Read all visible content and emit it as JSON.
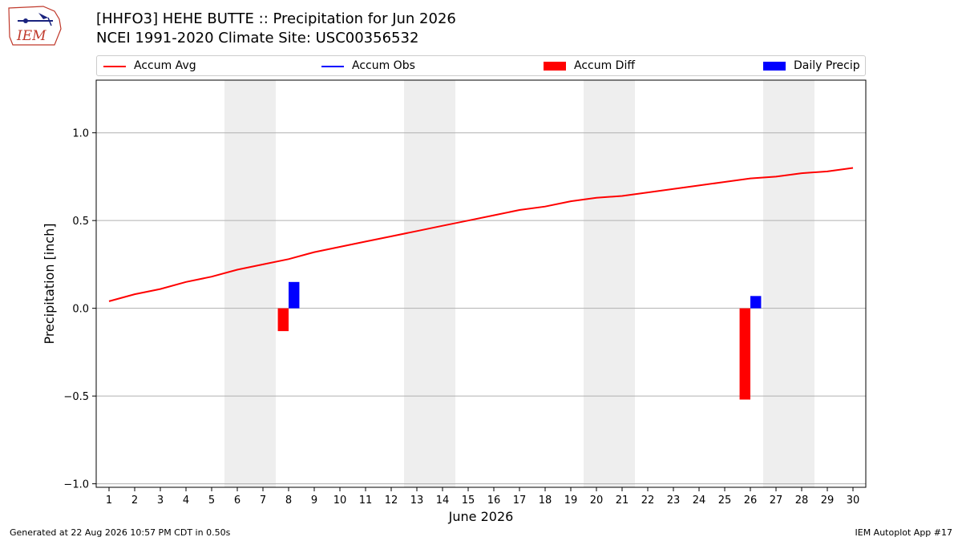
{
  "header": {
    "logo_text": "IEM",
    "title_line1": "[HHFO3] HEHE BUTTE :: Precipitation for Jun 2026",
    "title_line2": "NCEI 1991-2020 Climate Site: USC00356532"
  },
  "legend": {
    "items": [
      {
        "label": "Accum Avg",
        "kind": "line",
        "color": "#ff0000"
      },
      {
        "label": "Accum Obs",
        "kind": "line",
        "color": "#0000ff"
      },
      {
        "label": "Accum Diff",
        "kind": "box",
        "color": "#ff0000"
      },
      {
        "label": "Daily Precip",
        "kind": "box",
        "color": "#0000ff"
      }
    ],
    "placement": "top, above plot"
  },
  "footer": {
    "generated": "Generated at 22 Aug 2026 10:57 PM CDT in 0.50s",
    "app": "IEM Autoplot App #17"
  },
  "chart_data": {
    "type": "line",
    "xlabel": "June 2026",
    "ylabel": "Precipitation [inch]",
    "xlim": [
      0.5,
      30.5
    ],
    "ylim": [
      -1.02,
      1.3
    ],
    "x_ticks": [
      1,
      2,
      3,
      4,
      5,
      6,
      7,
      8,
      9,
      10,
      11,
      12,
      13,
      14,
      15,
      16,
      17,
      18,
      19,
      20,
      21,
      22,
      23,
      24,
      25,
      26,
      27,
      28,
      29,
      30
    ],
    "y_ticks": [
      -1.0,
      -0.5,
      0.0,
      0.5,
      1.0
    ],
    "y_tick_labels": [
      "−1.0",
      "−0.5",
      "0.0",
      "0.5",
      "1.0"
    ],
    "grid": "horizontal",
    "weekend_shading": [
      [
        6,
        7
      ],
      [
        13,
        14
      ],
      [
        20,
        21
      ],
      [
        27,
        28
      ]
    ],
    "shade_color": "#eeeeee",
    "series": [
      {
        "name": "Accum Avg",
        "kind": "line",
        "color": "#ff0000",
        "x": [
          1,
          2,
          3,
          4,
          5,
          6,
          7,
          8,
          9,
          10,
          11,
          12,
          13,
          14,
          15,
          16,
          17,
          18,
          19,
          20,
          21,
          22,
          23,
          24,
          25,
          26,
          27,
          28,
          29,
          30
        ],
        "values": [
          0.04,
          0.08,
          0.11,
          0.15,
          0.18,
          0.22,
          0.25,
          0.28,
          0.32,
          0.35,
          0.38,
          0.41,
          0.44,
          0.47,
          0.5,
          0.53,
          0.56,
          0.58,
          0.61,
          0.63,
          0.64,
          0.66,
          0.68,
          0.7,
          0.72,
          0.74,
          0.75,
          0.77,
          0.78,
          0.8
        ]
      },
      {
        "name": "Accum Diff",
        "kind": "bar",
        "color": "#ff0000",
        "x": [
          8,
          26
        ],
        "values": [
          -0.13,
          -0.52
        ]
      },
      {
        "name": "Daily Precip",
        "kind": "bar",
        "color": "#0000ff",
        "x": [
          8,
          26
        ],
        "values": [
          0.15,
          0.07
        ]
      }
    ]
  }
}
